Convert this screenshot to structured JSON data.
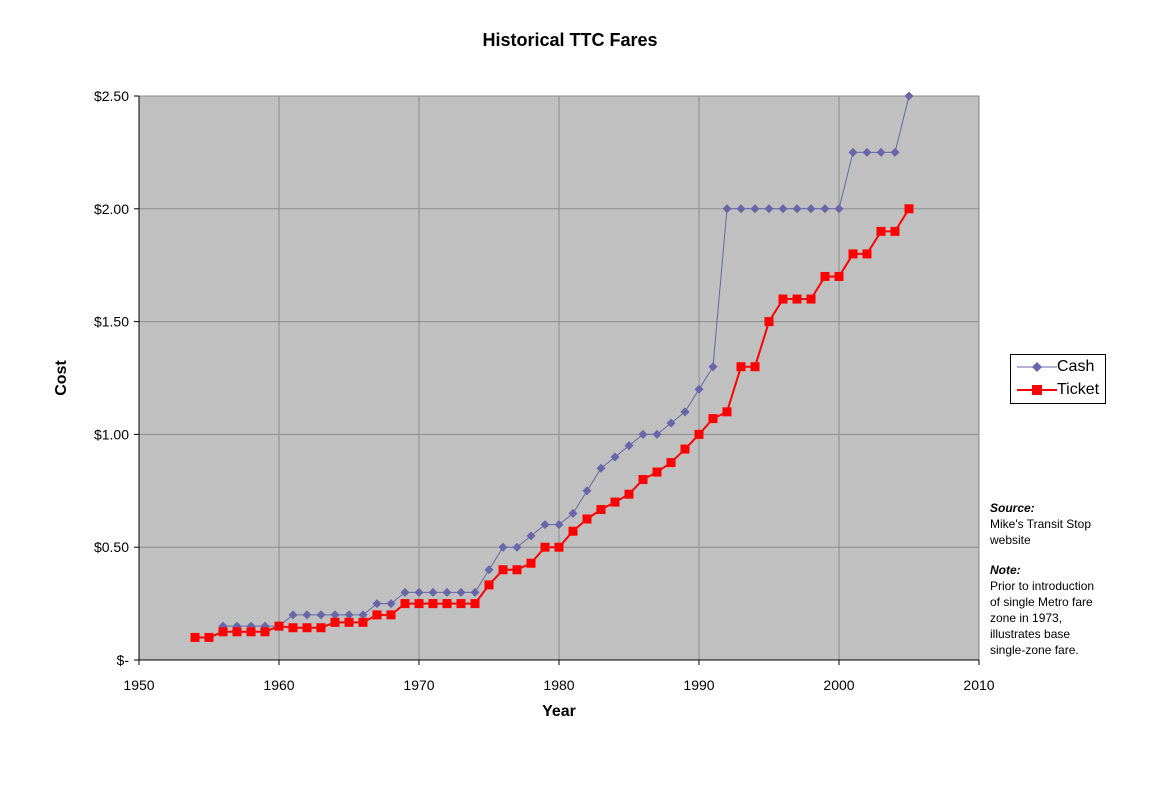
{
  "chart_data": {
    "type": "line",
    "title": "Historical TTC Fares",
    "xlabel": "Year",
    "ylabel": "Cost",
    "xlim": [
      1950,
      2010
    ],
    "ylim": [
      0,
      2.5
    ],
    "x_ticks": [
      1950,
      1960,
      1970,
      1980,
      1990,
      2000,
      2010
    ],
    "y_ticks": [
      0,
      0.5,
      1.0,
      1.5,
      2.0,
      2.5
    ],
    "y_tick_labels": [
      "$-",
      "$0.50",
      "$1.00",
      "$1.50",
      "$2.00",
      "$2.50"
    ],
    "grid": true,
    "legend_position": "right",
    "series": [
      {
        "name": "Cash",
        "color": "#6666a8",
        "marker": "diamond",
        "x": [
          1956,
          1957,
          1958,
          1959,
          1960,
          1961,
          1962,
          1963,
          1964,
          1965,
          1966,
          1967,
          1968,
          1969,
          1970,
          1971,
          1972,
          1973,
          1974,
          1975,
          1976,
          1977,
          1978,
          1979,
          1980,
          1981,
          1982,
          1983,
          1984,
          1985,
          1986,
          1987,
          1988,
          1989,
          1990,
          1991,
          1992,
          1993,
          1994,
          1995,
          1996,
          1997,
          1998,
          1999,
          2000,
          2001,
          2002,
          2003,
          2004,
          2005
        ],
        "values": [
          0.15,
          0.15,
          0.15,
          0.15,
          0.15,
          0.2,
          0.2,
          0.2,
          0.2,
          0.2,
          0.2,
          0.25,
          0.25,
          0.3,
          0.3,
          0.3,
          0.3,
          0.3,
          0.3,
          0.4,
          0.5,
          0.5,
          0.55,
          0.6,
          0.6,
          0.65,
          0.75,
          0.85,
          0.9,
          0.95,
          1.0,
          1.0,
          1.05,
          1.1,
          1.2,
          1.3,
          2.0,
          2.0,
          2.0,
          2.0,
          2.0,
          2.0,
          2.0,
          2.0,
          2.0,
          2.25,
          2.25,
          2.25,
          2.25,
          2.5
        ]
      },
      {
        "name": "Ticket",
        "color": "#ff0000",
        "marker": "square",
        "x": [
          1954,
          1955,
          1956,
          1957,
          1958,
          1959,
          1960,
          1961,
          1962,
          1963,
          1964,
          1965,
          1966,
          1967,
          1968,
          1969,
          1970,
          1971,
          1972,
          1973,
          1974,
          1975,
          1976,
          1977,
          1978,
          1979,
          1980,
          1981,
          1982,
          1983,
          1984,
          1985,
          1986,
          1987,
          1988,
          1989,
          1990,
          1991,
          1992,
          1993,
          1994,
          1995,
          1996,
          1997,
          1998,
          1999,
          2000,
          2001,
          2002,
          2003,
          2004,
          2005
        ],
        "values": [
          0.1,
          0.1,
          0.125,
          0.125,
          0.125,
          0.125,
          0.15,
          0.143,
          0.143,
          0.143,
          0.167,
          0.167,
          0.167,
          0.2,
          0.2,
          0.25,
          0.25,
          0.25,
          0.25,
          0.25,
          0.25,
          0.333,
          0.4,
          0.4,
          0.429,
          0.5,
          0.5,
          0.571,
          0.625,
          0.667,
          0.7,
          0.735,
          0.8,
          0.833,
          0.875,
          0.935,
          1.0,
          1.07,
          1.1,
          1.3,
          1.3,
          1.5,
          1.6,
          1.6,
          1.6,
          1.7,
          1.7,
          1.8,
          1.8,
          1.9,
          1.9,
          2.0
        ]
      }
    ]
  },
  "notes": {
    "source_heading": "Source:",
    "source_lines": [
      "Mike's Transit Stop",
      "website"
    ],
    "note_heading": "Note:",
    "note_lines": [
      "Prior to introduction",
      "of single Metro fare",
      "zone in 1973,",
      "illustrates base",
      "single-zone fare."
    ]
  }
}
